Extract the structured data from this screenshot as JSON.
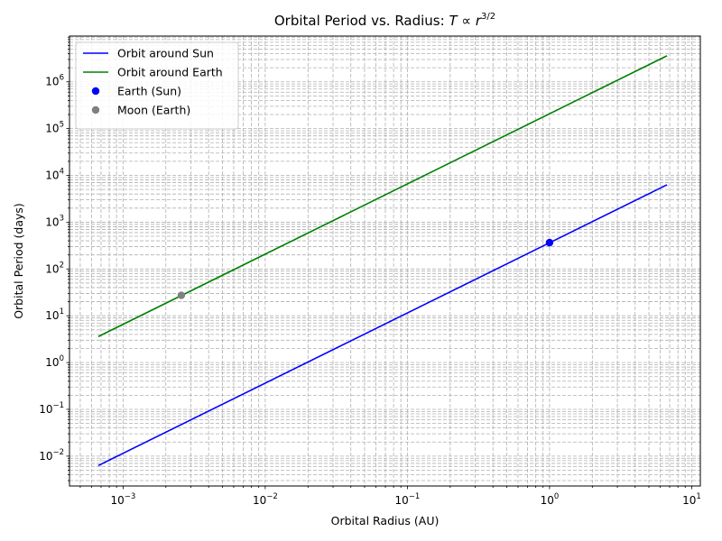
{
  "chart_data": {
    "type": "line",
    "title": "Orbital Period vs. Radius: ",
    "title_math": "T ∝ r",
    "title_math_exponent": "3/2",
    "xlabel": "Orbital Radius (AU)",
    "ylabel": "Orbital Period (days)",
    "xscale": "log",
    "yscale": "log",
    "xlim": [
      0.00042,
      11.5
    ],
    "ylim": [
      0.0023,
      9500000
    ],
    "grid": "both major and minor, dashed",
    "legend_position": "top-left",
    "x_tick_labels": [
      {
        "value": 0.001,
        "base": "10",
        "exp": "−3"
      },
      {
        "value": 0.01,
        "base": "10",
        "exp": "−2"
      },
      {
        "value": 0.1,
        "base": "10",
        "exp": "−1"
      },
      {
        "value": 1,
        "base": "10",
        "exp": "0"
      },
      {
        "value": 10,
        "base": "10",
        "exp": "1"
      }
    ],
    "y_tick_labels": [
      {
        "value": 0.01,
        "base": "10",
        "exp": "−2"
      },
      {
        "value": 0.1,
        "base": "10",
        "exp": "−1"
      },
      {
        "value": 1,
        "base": "10",
        "exp": "0"
      },
      {
        "value": 10,
        "base": "10",
        "exp": "1"
      },
      {
        "value": 100,
        "base": "10",
        "exp": "2"
      },
      {
        "value": 1000,
        "base": "10",
        "exp": "3"
      },
      {
        "value": 10000,
        "base": "10",
        "exp": "4"
      },
      {
        "value": 100000,
        "base": "10",
        "exp": "5"
      },
      {
        "value": 1000000,
        "base": "10",
        "exp": "6"
      }
    ],
    "series": [
      {
        "name": "Orbit around Sun",
        "kind": "line",
        "color": "#0000ff",
        "x": [
          0.00067,
          6.7
        ],
        "y": [
          0.0063,
          6300
        ]
      },
      {
        "name": "Orbit around Earth",
        "kind": "line",
        "color": "#008000",
        "x": [
          0.00067,
          6.7
        ],
        "y": [
          3.6,
          3600000
        ]
      },
      {
        "name": "Earth (Sun)",
        "kind": "point",
        "color": "#0000ff",
        "x": [
          1.0
        ],
        "y": [
          365.25
        ]
      },
      {
        "name": "Moon (Earth)",
        "kind": "point",
        "color": "#808080",
        "x": [
          0.00257
        ],
        "y": [
          27.3
        ]
      }
    ]
  }
}
